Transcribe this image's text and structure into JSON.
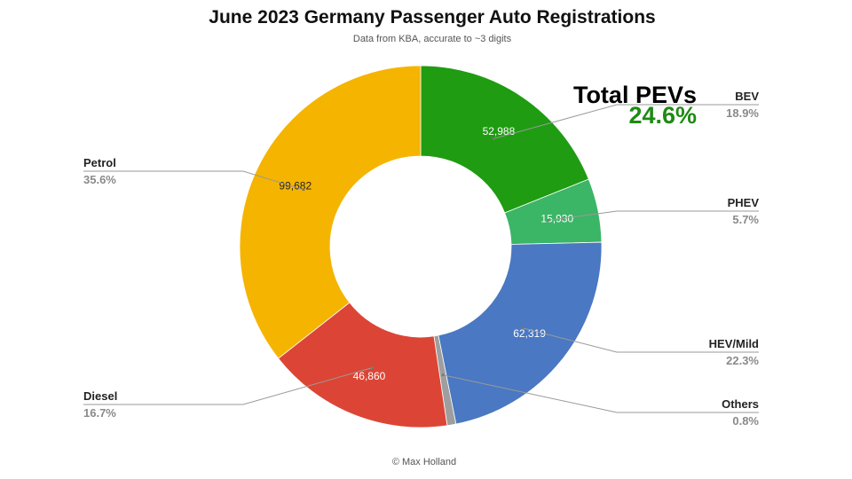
{
  "chart_data": {
    "type": "pie",
    "title": "June 2023 Germany Passenger Auto Registrations",
    "subtitle": "Data from KBA, accurate to ~3 digits",
    "credit": "© Max Holland",
    "donut": true,
    "slices": [
      {
        "name": "BEV",
        "value": 52988,
        "value_label": "52,988",
        "percent_label": "18.9%",
        "color": "#1f9c12"
      },
      {
        "name": "PHEV",
        "value": 15930,
        "value_label": "15,930",
        "percent_label": "5.7%",
        "color": "#3bb566"
      },
      {
        "name": "HEV/Mild",
        "value": 62319,
        "value_label": "62,319",
        "percent_label": "22.3%",
        "color": "#4a78c2"
      },
      {
        "name": "Others",
        "value": 2200,
        "value_label": "",
        "percent_label": "0.8%",
        "color": "#9e9e9e"
      },
      {
        "name": "Diesel",
        "value": 46860,
        "value_label": "46,860",
        "percent_label": "16.7%",
        "color": "#dc4535"
      },
      {
        "name": "Petrol",
        "value": 99682,
        "value_label": "99,682",
        "percent_label": "35.6%",
        "color": "#f5b400"
      }
    ],
    "annotation": {
      "label": "Total PEVs",
      "value": "24.6%",
      "value_color": "#1f8a14"
    }
  }
}
